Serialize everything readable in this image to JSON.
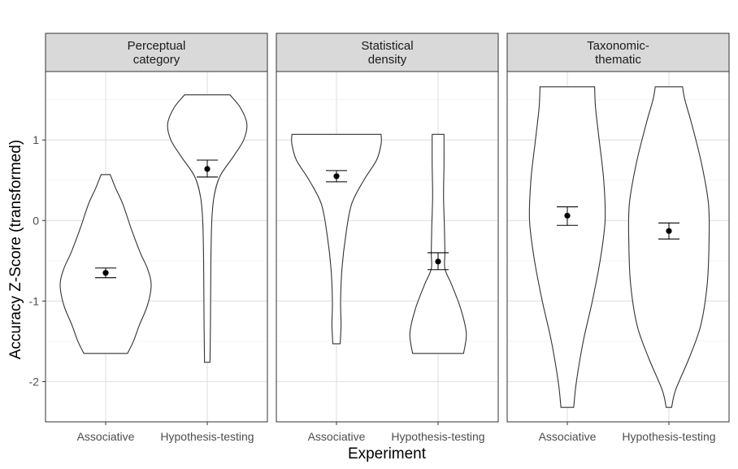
{
  "chart_data": {
    "type": "violin",
    "xlabel": "Experiment",
    "ylabel": "Accuracy Z-Score (transformed)",
    "categories": [
      "Associative",
      "Hypothesis-testing"
    ],
    "ylim": [
      -2.5,
      1.85
    ],
    "yticks": [
      1,
      0,
      -1,
      -2
    ],
    "ytick_labels": [
      "1",
      "0",
      "-1",
      "-2"
    ],
    "grid": true,
    "facets": [
      {
        "title": [
          "Perceptual",
          "category"
        ],
        "groups": [
          {
            "category": "Associative",
            "min": -1.65,
            "max": 0.57,
            "mean": -0.65,
            "ci_low": -0.71,
            "ci_high": -0.59,
            "profile": [
              [
                -1.65,
                0.48
              ],
              [
                -1.5,
                0.61
              ],
              [
                -1.3,
                0.74
              ],
              [
                -1.05,
                0.92
              ],
              [
                -0.8,
                1.0
              ],
              [
                -0.6,
                0.92
              ],
              [
                -0.4,
                0.76
              ],
              [
                -0.1,
                0.56
              ],
              [
                0.2,
                0.38
              ],
              [
                0.4,
                0.22
              ],
              [
                0.57,
                0.1
              ]
            ]
          },
          {
            "category": "Hypothesis-testing",
            "min": -1.76,
            "max": 1.56,
            "mean": 0.64,
            "ci_low": 0.54,
            "ci_high": 0.75,
            "profile": [
              [
                -1.76,
                0.06
              ],
              [
                -1.3,
                0.07
              ],
              [
                -0.5,
                0.08
              ],
              [
                0.0,
                0.1
              ],
              [
                0.3,
                0.15
              ],
              [
                0.55,
                0.28
              ],
              [
                0.8,
                0.58
              ],
              [
                1.0,
                0.8
              ],
              [
                1.2,
                0.87
              ],
              [
                1.4,
                0.73
              ],
              [
                1.56,
                0.5
              ]
            ]
          }
        ]
      },
      {
        "title": [
          "Statistical",
          "density"
        ],
        "groups": [
          {
            "category": "Associative",
            "min": -1.53,
            "max": 1.07,
            "mean": 0.55,
            "ci_low": 0.48,
            "ci_high": 0.62,
            "profile": [
              [
                -1.53,
                0.08
              ],
              [
                -1.3,
                0.1
              ],
              [
                -1.0,
                0.09
              ],
              [
                -0.6,
                0.12
              ],
              [
                -0.2,
                0.2
              ],
              [
                0.2,
                0.33
              ],
              [
                0.5,
                0.6
              ],
              [
                0.75,
                0.88
              ],
              [
                0.95,
                0.98
              ],
              [
                1.07,
                0.98
              ]
            ]
          },
          {
            "category": "Hypothesis-testing",
            "min": -1.65,
            "max": 1.07,
            "mean": -0.51,
            "ci_low": -0.61,
            "ci_high": -0.4,
            "profile": [
              [
                -1.65,
                0.56
              ],
              [
                -1.4,
                0.62
              ],
              [
                -1.1,
                0.5
              ],
              [
                -0.8,
                0.3
              ],
              [
                -0.6,
                0.15
              ],
              [
                -0.4,
                0.15
              ],
              [
                -0.1,
                0.14
              ],
              [
                0.3,
                0.12
              ],
              [
                0.7,
                0.13
              ],
              [
                1.07,
                0.13
              ]
            ]
          }
        ]
      },
      {
        "title": [
          "Taxonomic-",
          "thematic"
        ],
        "groups": [
          {
            "category": "Associative",
            "min": -2.32,
            "max": 1.66,
            "mean": 0.06,
            "ci_low": -0.06,
            "ci_high": 0.17,
            "profile": [
              [
                -2.32,
                0.14
              ],
              [
                -2.0,
                0.2
              ],
              [
                -1.5,
                0.35
              ],
              [
                -1.0,
                0.55
              ],
              [
                -0.5,
                0.72
              ],
              [
                0.0,
                0.83
              ],
              [
                0.5,
                0.8
              ],
              [
                1.0,
                0.7
              ],
              [
                1.4,
                0.62
              ],
              [
                1.66,
                0.6
              ]
            ]
          },
          {
            "category": "Hypothesis-testing",
            "min": -2.32,
            "max": 1.66,
            "mean": -0.13,
            "ci_low": -0.23,
            "ci_high": -0.03,
            "profile": [
              [
                -2.32,
                0.06
              ],
              [
                -2.1,
                0.15
              ],
              [
                -1.7,
                0.45
              ],
              [
                -1.3,
                0.7
              ],
              [
                -0.8,
                0.84
              ],
              [
                -0.3,
                0.88
              ],
              [
                0.2,
                0.87
              ],
              [
                0.7,
                0.72
              ],
              [
                1.2,
                0.5
              ],
              [
                1.5,
                0.35
              ],
              [
                1.66,
                0.3
              ]
            ]
          }
        ]
      }
    ]
  }
}
